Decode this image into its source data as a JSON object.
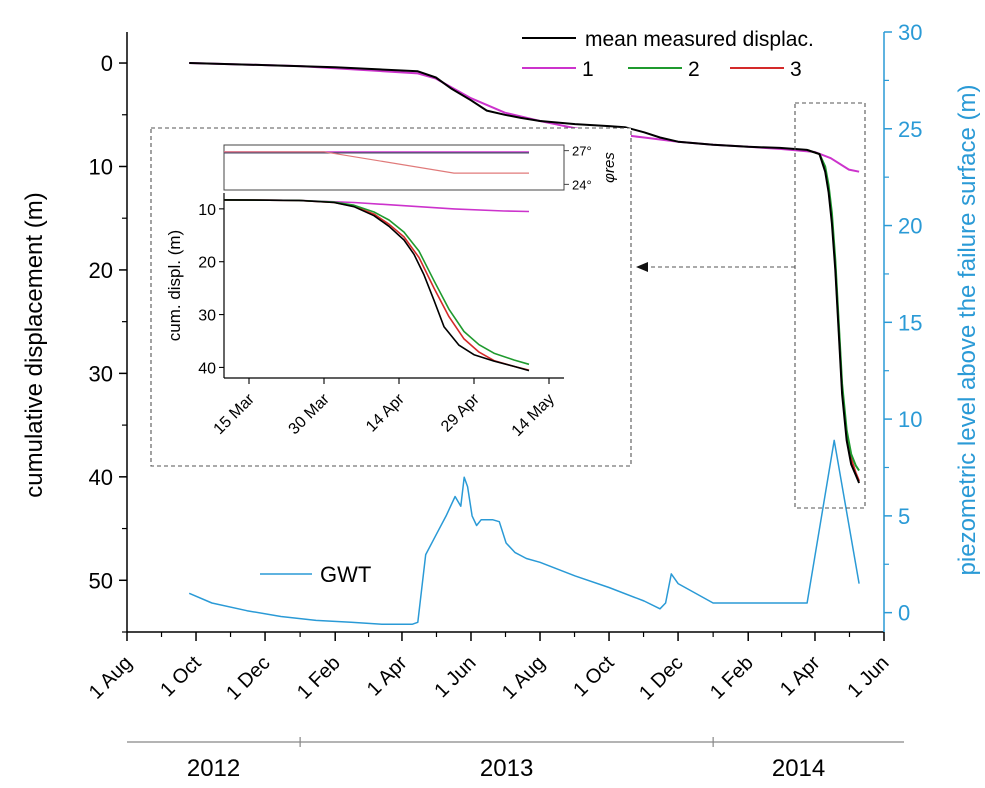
{
  "colors": {
    "measured": "#000000",
    "series1": "#cc33cc",
    "series2": "#1f9a2e",
    "series3": "#d42a2a",
    "gwt": "#2a9ad6",
    "right_axis": "#2a9ad6",
    "frame": "#777777",
    "inset_phi2": "#444466"
  },
  "chart_data": [
    {
      "id": "main",
      "type": "line",
      "xlabel": "",
      "ylabel": "cumulative displacement (m)",
      "ylabel_right": "piezometric level above the failure surface (m)",
      "xlim": [
        "2012-08-01",
        "2014-06-01"
      ],
      "ylim": [
        55,
        -3
      ],
      "ylim_right": [
        -1,
        30
      ],
      "y_reversed": true,
      "x_tick_labels": [
        "1 Aug",
        "1 Oct",
        "1 Dec",
        "1 Feb",
        "1 Apr",
        "1 Jun",
        "1 Aug",
        "1 Oct",
        "1 Dec",
        "1 Feb",
        "1 Apr",
        "1 Jun"
      ],
      "x_tick_dates": [
        "2012-08-01",
        "2012-10-01",
        "2012-12-01",
        "2013-02-01",
        "2013-04-01",
        "2013-06-01",
        "2013-08-01",
        "2013-10-01",
        "2013-12-01",
        "2014-02-01",
        "2014-04-01",
        "2014-06-01"
      ],
      "y_ticks": [
        "0",
        "10",
        "20",
        "30",
        "40",
        "50"
      ],
      "y_ticks_right": [
        "0",
        "5",
        "10",
        "15",
        "20",
        "25",
        "30"
      ],
      "years": [
        {
          "label": "2012",
          "from": "2012-08-01",
          "to": "2013-01-01"
        },
        {
          "label": "2013",
          "from": "2013-01-01",
          "to": "2014-01-01"
        },
        {
          "label": "2014",
          "from": "2014-01-01",
          "to": "2014-06-01"
        }
      ],
      "legend_position": "top-right",
      "grid": false,
      "series": [
        {
          "name": "mean measured displac.",
          "axis": "left",
          "x": [
            "2012-09-25",
            "2012-12-01",
            "2013-02-01",
            "2013-04-15",
            "2013-05-01",
            "2013-05-15",
            "2013-06-01",
            "2013-06-15",
            "2013-07-01",
            "2013-07-15",
            "2013-08-01",
            "2013-09-01",
            "2013-10-01",
            "2013-10-15",
            "2013-11-01",
            "2013-11-15",
            "2013-12-01",
            "2014-01-01",
            "2014-02-01",
            "2014-03-01",
            "2014-03-25",
            "2014-04-05",
            "2014-04-10",
            "2014-04-13",
            "2014-04-16",
            "2014-04-19",
            "2014-04-22",
            "2014-04-25",
            "2014-04-29",
            "2014-05-03",
            "2014-05-07",
            "2014-05-10"
          ],
          "values": [
            0,
            0.2,
            0.4,
            0.8,
            1.4,
            2.5,
            3.6,
            4.6,
            5.0,
            5.3,
            5.6,
            5.9,
            6.1,
            6.2,
            6.7,
            7.2,
            7.6,
            7.9,
            8.1,
            8.2,
            8.4,
            8.8,
            10.5,
            12.5,
            15.5,
            20,
            26,
            32,
            36.5,
            38.8,
            39.8,
            40.6
          ]
        },
        {
          "name": "1",
          "axis": "left",
          "x": [
            "2012-09-25",
            "2013-01-01",
            "2013-04-15",
            "2013-05-01",
            "2013-06-01",
            "2013-07-01",
            "2013-08-01",
            "2013-09-01",
            "2013-10-01",
            "2013-11-01",
            "2013-12-01",
            "2014-01-01",
            "2014-02-01",
            "2014-03-01",
            "2014-04-01",
            "2014-04-15",
            "2014-05-01",
            "2014-05-10"
          ],
          "values": [
            0,
            0.3,
            1.0,
            1.5,
            3.4,
            4.8,
            5.6,
            6.3,
            6.8,
            7.2,
            7.6,
            7.9,
            8.1,
            8.3,
            8.6,
            9.2,
            10.3,
            10.5
          ]
        },
        {
          "name": "2",
          "axis": "left",
          "x": [
            "2014-03-25",
            "2014-04-05",
            "2014-04-10",
            "2014-04-13",
            "2014-04-16",
            "2014-04-19",
            "2014-04-22",
            "2014-04-25",
            "2014-04-29",
            "2014-05-03",
            "2014-05-07",
            "2014-05-10"
          ],
          "values": [
            8.4,
            8.8,
            10.0,
            11.8,
            14.5,
            19,
            25,
            31,
            35.5,
            37.8,
            38.9,
            39.4
          ]
        },
        {
          "name": "3",
          "axis": "left",
          "x": [
            "2014-03-25",
            "2014-04-05",
            "2014-04-10",
            "2014-04-13",
            "2014-04-16",
            "2014-04-19",
            "2014-04-22",
            "2014-04-25",
            "2014-04-29",
            "2014-05-03",
            "2014-05-07",
            "2014-05-10"
          ],
          "values": [
            8.4,
            8.8,
            10.2,
            12.2,
            15.0,
            19.5,
            25.5,
            31.5,
            36.0,
            38.3,
            39.6,
            40.4
          ]
        },
        {
          "name": "GWT",
          "axis": "right",
          "x": [
            "2012-09-25",
            "2012-10-15",
            "2012-11-15",
            "2012-12-15",
            "2013-01-15",
            "2013-02-15",
            "2013-03-15",
            "2013-04-10",
            "2013-04-15",
            "2013-04-22",
            "2013-05-01",
            "2013-05-10",
            "2013-05-18",
            "2013-05-23",
            "2013-05-26",
            "2013-05-29",
            "2013-06-02",
            "2013-06-06",
            "2013-06-10",
            "2013-06-20",
            "2013-06-26",
            "2013-07-02",
            "2013-07-10",
            "2013-07-20",
            "2013-08-01",
            "2013-09-01",
            "2013-10-01",
            "2013-11-01",
            "2013-11-15",
            "2013-11-20",
            "2013-11-25",
            "2013-12-01",
            "2014-01-01",
            "2014-02-01",
            "2014-03-01",
            "2014-03-25",
            "2014-04-18",
            "2014-05-10"
          ],
          "values": [
            1.0,
            0.5,
            0.1,
            -0.2,
            -0.4,
            -0.5,
            -0.6,
            -0.6,
            -0.5,
            3.0,
            4.0,
            5.0,
            6.0,
            5.5,
            7.0,
            6.5,
            5.0,
            4.5,
            4.8,
            4.8,
            4.7,
            3.6,
            3.1,
            2.8,
            2.6,
            1.9,
            1.3,
            0.6,
            0.2,
            0.5,
            2.0,
            1.5,
            0.5,
            0.5,
            0.5,
            0.5,
            8.9,
            1.5
          ]
        }
      ],
      "annotations": [
        "GWT"
      ]
    },
    {
      "id": "inset",
      "type": "line",
      "xlabel": "",
      "ylabel": "cum. displ. (m)",
      "ylabel_right": "φres",
      "xlim": [
        "2014-03-10",
        "2014-05-17"
      ],
      "ylim": [
        42,
        7
      ],
      "y_reversed": true,
      "x_tick_labels": [
        "15 Mar",
        "30 Mar",
        "14 Apr",
        "29 Apr",
        "14 May"
      ],
      "x_tick_dates": [
        "2014-03-15",
        "2014-03-30",
        "2014-04-14",
        "2014-04-29",
        "2014-05-14"
      ],
      "y_ticks": [
        "10",
        "20",
        "30",
        "40"
      ],
      "phi_ticks": [
        "27°",
        "24°"
      ],
      "phi_lim": [
        23.5,
        27.5
      ],
      "series": [
        {
          "name": "mean measured displac.",
          "x": [
            "2014-03-10",
            "2014-03-25",
            "2014-04-01",
            "2014-04-05",
            "2014-04-09",
            "2014-04-12",
            "2014-04-15",
            "2014-04-17",
            "2014-04-19",
            "2014-04-21",
            "2014-04-23",
            "2014-04-26",
            "2014-04-29",
            "2014-05-03",
            "2014-05-07",
            "2014-05-10"
          ],
          "values": [
            8.3,
            8.4,
            8.8,
            9.6,
            11.3,
            13.3,
            15.9,
            18.6,
            22.5,
            27.3,
            32.3,
            35.8,
            37.6,
            38.8,
            39.8,
            40.6
          ]
        },
        {
          "name": "1",
          "x": [
            "2014-03-10",
            "2014-03-25",
            "2014-04-05",
            "2014-04-15",
            "2014-04-25",
            "2014-05-05",
            "2014-05-10"
          ],
          "values": [
            8.3,
            8.4,
            8.8,
            9.4,
            10.0,
            10.4,
            10.5
          ]
        },
        {
          "name": "2",
          "x": [
            "2014-03-10",
            "2014-03-25",
            "2014-04-01",
            "2014-04-05",
            "2014-04-09",
            "2014-04-12",
            "2014-04-15",
            "2014-04-18",
            "2014-04-21",
            "2014-04-24",
            "2014-04-27",
            "2014-04-30",
            "2014-05-03",
            "2014-05-07",
            "2014-05-10"
          ],
          "values": [
            8.3,
            8.4,
            8.7,
            9.3,
            10.6,
            12.1,
            14.4,
            18.0,
            23.6,
            29.0,
            33.2,
            35.7,
            37.3,
            38.6,
            39.4
          ]
        },
        {
          "name": "3",
          "x": [
            "2014-03-10",
            "2014-03-25",
            "2014-04-01",
            "2014-04-05",
            "2014-04-09",
            "2014-04-12",
            "2014-04-15",
            "2014-04-18",
            "2014-04-21",
            "2014-04-24",
            "2014-04-27",
            "2014-04-30",
            "2014-05-03",
            "2014-05-07",
            "2014-05-10"
          ],
          "values": [
            8.3,
            8.4,
            8.8,
            9.5,
            11.0,
            12.9,
            15.3,
            19.2,
            25.0,
            30.4,
            34.6,
            37.1,
            38.7,
            39.8,
            40.5
          ]
        }
      ],
      "phi_series": [
        {
          "name": "1",
          "x": [
            "2014-03-10",
            "2014-05-10"
          ],
          "values": [
            26.9,
            26.9
          ]
        },
        {
          "name": "2",
          "x": [
            "2014-03-10",
            "2014-05-10"
          ],
          "values": [
            26.8,
            26.8
          ]
        },
        {
          "name": "3",
          "x": [
            "2014-03-10",
            "2014-03-30",
            "2014-04-25",
            "2014-05-10"
          ],
          "values": [
            26.9,
            26.9,
            25.0,
            25.0
          ]
        }
      ]
    }
  ]
}
